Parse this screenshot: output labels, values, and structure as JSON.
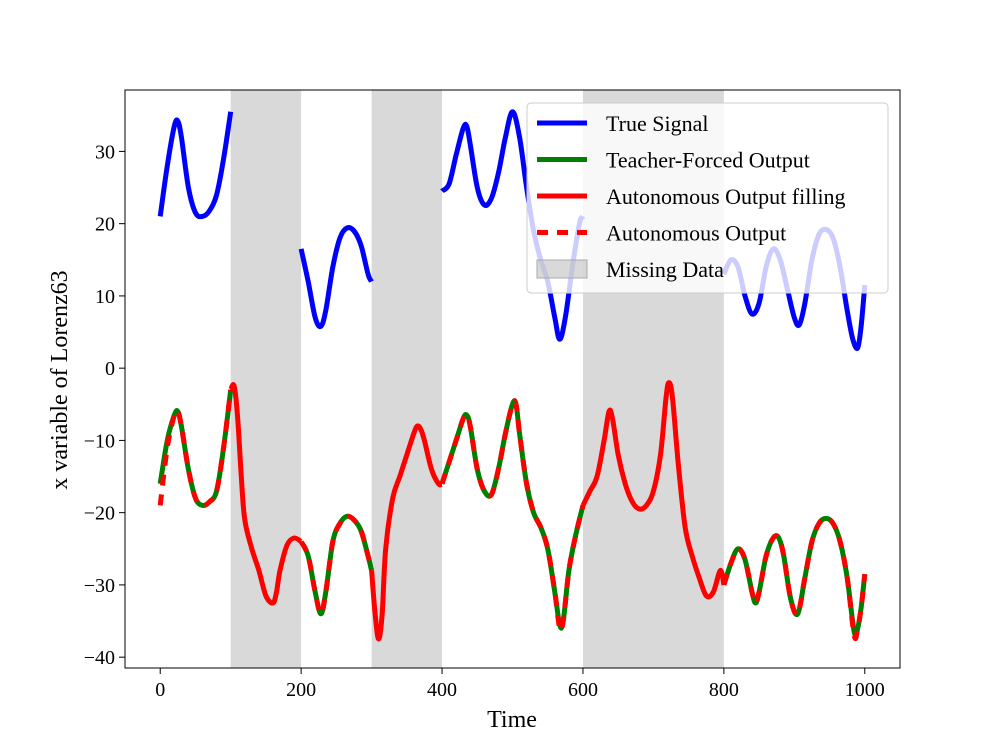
{
  "chart_data": {
    "type": "line",
    "xlabel": "Time",
    "ylabel": "x variable of Lorenz63",
    "xlim": [
      -50,
      1050
    ],
    "ylim": [
      -41.5,
      38.5
    ],
    "xticks": [
      0,
      200,
      400,
      600,
      800,
      1000
    ],
    "yticks": [
      -40,
      -30,
      -20,
      -10,
      0,
      10,
      20,
      30
    ],
    "missing_data_ranges": [
      [
        100,
        200
      ],
      [
        300,
        400
      ],
      [
        600,
        800
      ]
    ],
    "legend_position": "top-right",
    "colors": {
      "true_signal": "#0000ff",
      "teacher_forced": "#008000",
      "autonomous": "#ff0000",
      "missing": "#bfbfbf"
    },
    "legend": [
      {
        "label": "True Signal",
        "style": "blue-solid"
      },
      {
        "label": "Teacher-Forced Output",
        "style": "green-solid"
      },
      {
        "label": "Autonomous Output filling",
        "style": "red-solid"
      },
      {
        "label": "Autonomous Output",
        "style": "red-dashed"
      },
      {
        "label": "Missing Data",
        "style": "gray-patch"
      }
    ],
    "series": [
      {
        "name": "True Signal",
        "segments": [
          [
            [
              0,
              21
            ],
            [
              10,
              28
            ],
            [
              20,
              33.5
            ],
            [
              25,
              34.2
            ],
            [
              30,
              32
            ],
            [
              40,
              25
            ],
            [
              50,
              21.5
            ],
            [
              60,
              21
            ],
            [
              70,
              21.8
            ],
            [
              80,
              24
            ],
            [
              90,
              29
            ],
            [
              100,
              35.5
            ]
          ],
          [
            [
              200,
              16.5
            ],
            [
              210,
              12
            ],
            [
              220,
              7
            ],
            [
              228,
              5.8
            ],
            [
              235,
              8
            ],
            [
              245,
              14
            ],
            [
              255,
              18
            ],
            [
              265,
              19.4
            ],
            [
              275,
              19
            ],
            [
              285,
              17
            ],
            [
              295,
              13
            ],
            [
              300,
              12
            ]
          ],
          [
            [
              400,
              24.5
            ],
            [
              410,
              25.5
            ],
            [
              420,
              29.5
            ],
            [
              430,
              33.2
            ],
            [
              435,
              33.5
            ],
            [
              440,
              31
            ],
            [
              450,
              25
            ],
            [
              460,
              22.6
            ],
            [
              470,
              23.5
            ],
            [
              480,
              27
            ],
            [
              490,
              32
            ],
            [
              500,
              35.5
            ],
            [
              510,
              32
            ],
            [
              520,
              25
            ],
            [
              530,
              19
            ],
            [
              540,
              15
            ],
            [
              550,
              12
            ],
            [
              560,
              7
            ],
            [
              567,
              4
            ],
            [
              575,
              7
            ],
            [
              585,
              14
            ],
            [
              595,
              20
            ],
            [
              600,
              21
            ]
          ],
          [
            [
              800,
              13
            ],
            [
              810,
              15
            ],
            [
              820,
              14
            ],
            [
              830,
              10
            ],
            [
              840,
              7.5
            ],
            [
              850,
              9
            ],
            [
              860,
              14
            ],
            [
              870,
              16.5
            ],
            [
              880,
              15
            ],
            [
              890,
              11
            ],
            [
              900,
              7
            ],
            [
              907,
              6
            ],
            [
              915,
              9
            ],
            [
              925,
              15
            ],
            [
              935,
              18.5
            ],
            [
              945,
              19.2
            ],
            [
              955,
              18
            ],
            [
              965,
              14
            ],
            [
              975,
              8
            ],
            [
              983,
              4
            ],
            [
              990,
              2.8
            ],
            [
              995,
              6
            ],
            [
              1000,
              11.5
            ]
          ]
        ]
      },
      {
        "name": "Teacher-Forced Output",
        "segments": [
          [
            [
              0,
              -16
            ],
            [
              10,
              -10
            ],
            [
              20,
              -6.5
            ],
            [
              25,
              -6
            ],
            [
              30,
              -8
            ],
            [
              40,
              -14
            ],
            [
              50,
              -18
            ],
            [
              60,
              -19
            ],
            [
              70,
              -18.5
            ],
            [
              80,
              -17
            ],
            [
              90,
              -11
            ],
            [
              100,
              -3
            ]
          ],
          [
            [
              200,
              -24
            ],
            [
              210,
              -26
            ],
            [
              220,
              -31
            ],
            [
              228,
              -34
            ],
            [
              235,
              -31
            ],
            [
              245,
              -24
            ],
            [
              255,
              -21.5
            ],
            [
              265,
              -20.5
            ],
            [
              275,
              -21
            ],
            [
              285,
              -22.5
            ],
            [
              295,
              -26
            ],
            [
              300,
              -28
            ]
          ],
          [
            [
              400,
              -16
            ],
            [
              410,
              -13
            ],
            [
              420,
              -10
            ],
            [
              430,
              -7
            ],
            [
              435,
              -6.5
            ],
            [
              440,
              -8
            ],
            [
              450,
              -14
            ],
            [
              460,
              -17
            ],
            [
              470,
              -17.5
            ],
            [
              480,
              -14
            ],
            [
              490,
              -9
            ],
            [
              500,
              -5
            ],
            [
              505,
              -5
            ],
            [
              510,
              -9
            ],
            [
              520,
              -16
            ],
            [
              530,
              -20
            ],
            [
              540,
              -22
            ],
            [
              550,
              -25
            ],
            [
              560,
              -31
            ],
            [
              567,
              -35.5
            ],
            [
              572,
              -35
            ],
            [
              580,
              -28
            ],
            [
              590,
              -23
            ],
            [
              600,
              -19
            ]
          ],
          [
            [
              800,
              -30
            ],
            [
              810,
              -27
            ],
            [
              820,
              -25
            ],
            [
              830,
              -26.5
            ],
            [
              840,
              -31
            ],
            [
              845,
              -32.5
            ],
            [
              850,
              -31
            ],
            [
              860,
              -26
            ],
            [
              870,
              -23.5
            ],
            [
              878,
              -23.5
            ],
            [
              885,
              -26
            ],
            [
              895,
              -32
            ],
            [
              905,
              -34
            ],
            [
              915,
              -29
            ],
            [
              925,
              -24
            ],
            [
              935,
              -21.5
            ],
            [
              945,
              -20.8
            ],
            [
              955,
              -21.5
            ],
            [
              965,
              -24
            ],
            [
              975,
              -29
            ],
            [
              985,
              -36.5
            ],
            [
              990,
              -36
            ],
            [
              995,
              -33
            ],
            [
              1000,
              -28.5
            ]
          ]
        ]
      },
      {
        "name": "Autonomous Output filling",
        "segments": [
          [
            [
              100,
              -3
            ],
            [
              105,
              -2.5
            ],
            [
              110,
              -7
            ],
            [
              115,
              -15
            ],
            [
              120,
              -21
            ],
            [
              130,
              -25
            ],
            [
              140,
              -28
            ],
            [
              150,
              -31.5
            ],
            [
              160,
              -32.5
            ],
            [
              165,
              -31
            ],
            [
              170,
              -28
            ],
            [
              180,
              -24.5
            ],
            [
              190,
              -23.5
            ],
            [
              200,
              -24
            ]
          ],
          [
            [
              300,
              -28
            ],
            [
              305,
              -34
            ],
            [
              310,
              -37.5
            ],
            [
              315,
              -34
            ],
            [
              320,
              -25
            ],
            [
              330,
              -18
            ],
            [
              340,
              -15
            ],
            [
              350,
              -12
            ],
            [
              360,
              -9
            ],
            [
              365,
              -8
            ],
            [
              370,
              -8.5
            ],
            [
              375,
              -10
            ],
            [
              385,
              -14
            ],
            [
              395,
              -16
            ],
            [
              400,
              -16
            ]
          ],
          [
            [
              600,
              -19
            ],
            [
              610,
              -17
            ],
            [
              620,
              -15
            ],
            [
              630,
              -10
            ],
            [
              637,
              -6
            ],
            [
              642,
              -7
            ],
            [
              650,
              -12
            ],
            [
              660,
              -16
            ],
            [
              670,
              -18.5
            ],
            [
              680,
              -19.5
            ],
            [
              690,
              -19
            ],
            [
              700,
              -17
            ],
            [
              710,
              -12
            ],
            [
              718,
              -4
            ],
            [
              722,
              -2
            ],
            [
              727,
              -4
            ],
            [
              735,
              -13
            ],
            [
              745,
              -22
            ],
            [
              755,
              -26
            ],
            [
              765,
              -29
            ],
            [
              775,
              -31.5
            ],
            [
              785,
              -31
            ],
            [
              795,
              -28
            ],
            [
              800,
              -30
            ]
          ]
        ]
      },
      {
        "name": "Autonomous Output",
        "segments": [
          [
            [
              0,
              -19
            ],
            [
              10,
              -11
            ],
            [
              20,
              -6.5
            ],
            [
              25,
              -6
            ],
            [
              30,
              -8
            ],
            [
              40,
              -14
            ],
            [
              50,
              -18
            ],
            [
              60,
              -19
            ],
            [
              70,
              -18.5
            ],
            [
              80,
              -17
            ],
            [
              90,
              -11
            ],
            [
              100,
              -3
            ]
          ],
          [
            [
              200,
              -24
            ],
            [
              210,
              -26
            ],
            [
              220,
              -31
            ],
            [
              228,
              -34
            ],
            [
              235,
              -31
            ],
            [
              245,
              -24
            ],
            [
              255,
              -21.5
            ],
            [
              265,
              -20.5
            ],
            [
              275,
              -21
            ],
            [
              285,
              -22.5
            ],
            [
              295,
              -26
            ],
            [
              300,
              -28
            ]
          ],
          [
            [
              400,
              -16
            ],
            [
              410,
              -13
            ],
            [
              420,
              -10
            ],
            [
              430,
              -7
            ],
            [
              435,
              -6.5
            ],
            [
              440,
              -8
            ],
            [
              450,
              -14
            ],
            [
              460,
              -17
            ],
            [
              470,
              -17.5
            ],
            [
              480,
              -14
            ],
            [
              490,
              -9
            ],
            [
              500,
              -5
            ],
            [
              505,
              -5
            ],
            [
              510,
              -9
            ],
            [
              520,
              -16
            ],
            [
              530,
              -20
            ],
            [
              540,
              -22
            ],
            [
              550,
              -25
            ],
            [
              560,
              -31
            ],
            [
              567,
              -36
            ],
            [
              572,
              -35
            ],
            [
              580,
              -28
            ],
            [
              590,
              -23
            ],
            [
              600,
              -19
            ]
          ],
          [
            [
              800,
              -30
            ],
            [
              810,
              -27
            ],
            [
              820,
              -25
            ],
            [
              830,
              -26.5
            ],
            [
              840,
              -31
            ],
            [
              845,
              -32.5
            ],
            [
              850,
              -31
            ],
            [
              860,
              -26
            ],
            [
              870,
              -23.5
            ],
            [
              878,
              -23.5
            ],
            [
              885,
              -26
            ],
            [
              895,
              -32
            ],
            [
              905,
              -34
            ],
            [
              915,
              -29
            ],
            [
              925,
              -24
            ],
            [
              935,
              -21.5
            ],
            [
              945,
              -20.8
            ],
            [
              955,
              -21.5
            ],
            [
              965,
              -24
            ],
            [
              975,
              -29
            ],
            [
              985,
              -37
            ],
            [
              990,
              -36
            ],
            [
              995,
              -33
            ],
            [
              1000,
              -28.5
            ]
          ]
        ]
      }
    ]
  }
}
